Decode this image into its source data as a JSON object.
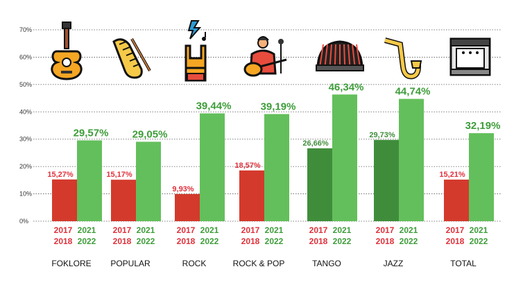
{
  "chart_data": {
    "type": "bar",
    "ylim": [
      0,
      70
    ],
    "yticks": [
      "0%",
      "10%",
      "20%",
      "30%",
      "40%",
      "50%",
      "60%",
      "70%"
    ],
    "grid": true,
    "categories": [
      "FOKLORE",
      "POPULAR",
      "ROCK",
      "ROCK & POP",
      "TANGO",
      "JAZZ",
      "TOTAL"
    ],
    "icons": [
      "guitar-icon",
      "guiro-icon",
      "rock-hand-icon",
      "guitar-singer-icon",
      "bandoneon-icon",
      "saxophone-icon",
      "stage-icon"
    ],
    "series": [
      {
        "years": [
          "2017",
          "2018"
        ],
        "values": [
          15.27,
          15.17,
          9.93,
          18.57,
          26.66,
          29.73,
          15.21
        ],
        "labels": [
          "15,27%",
          "15,17%",
          "9,93%",
          "18,57%",
          "26,66%",
          "29,73%",
          "15,21%"
        ],
        "colors": [
          "#d33a2c",
          "#d33a2c",
          "#d33a2c",
          "#d33a2c",
          "#3f8d3b",
          "#3f8d3b",
          "#d33a2c"
        ],
        "label_colors": [
          "#e0303a",
          "#e0303a",
          "#e0303a",
          "#e0303a",
          "#3f8d3b",
          "#3f8d3b",
          "#e0303a"
        ]
      },
      {
        "years": [
          "2021",
          "2022"
        ],
        "values": [
          29.57,
          29.05,
          39.44,
          39.19,
          46.34,
          44.74,
          32.19
        ],
        "labels": [
          "29,57%",
          "29,05%",
          "39,44%",
          "39,19%",
          "46,34%",
          "44,74%",
          "32,19%"
        ],
        "colors": [
          "#63bf5b",
          "#63bf5b",
          "#63bf5b",
          "#63bf5b",
          "#63bf5b",
          "#63bf5b",
          "#63bf5b"
        ],
        "label_colors": [
          "#3e9d3a",
          "#3e9d3a",
          "#3e9d3a",
          "#3e9d3a",
          "#3e9d3a",
          "#3e9d3a",
          "#3e9d3a"
        ]
      }
    ],
    "year_label_colors": [
      "#e0303a",
      "#3e9d3a"
    ]
  }
}
